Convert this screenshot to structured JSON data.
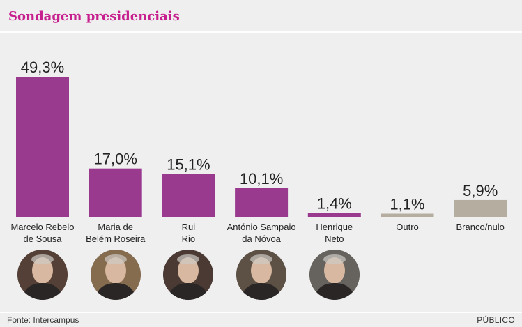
{
  "header": {
    "title": "Sondagem presidenciais"
  },
  "footer": {
    "source": "Fonte: Intercampus",
    "brand": "PÚBLICO"
  },
  "colors": {
    "primary": "#993a8f",
    "neutral": "#b5ad9f",
    "title": "#c71f8e"
  },
  "chart_data": {
    "type": "bar",
    "categories": [
      [
        "Marcelo Rebelo",
        "de Sousa"
      ],
      [
        "Maria de",
        "Belém Roseira"
      ],
      [
        "Rui",
        "Rio"
      ],
      [
        "António Sampaio",
        "da Nóvoa"
      ],
      [
        "Henrique",
        "Neto"
      ],
      [
        "Outro"
      ],
      [
        "Branco/nulo"
      ]
    ],
    "values": [
      49.3,
      17.0,
      15.1,
      10.1,
      1.4,
      1.1,
      5.9
    ],
    "value_labels": [
      "49,3%",
      "17,0%",
      "15,1%",
      "10,1%",
      "1,4%",
      "1,1%",
      "5,9%"
    ],
    "bar_colors": [
      "primary",
      "primary",
      "primary",
      "primary",
      "primary",
      "neutral",
      "neutral"
    ],
    "candidate_photos": [
      {
        "icon": "portrait-marcelo-rebelo-de-sousa",
        "tone": "#6a4a3c"
      },
      {
        "icon": "portrait-maria-de-belem-roseira",
        "tone": "#c49a6a"
      },
      {
        "icon": "portrait-rui-rio",
        "tone": "#5a4038"
      },
      {
        "icon": "portrait-antonio-sampaio-da-novoa",
        "tone": "#7a6a5a"
      },
      {
        "icon": "portrait-henrique-neto",
        "tone": "#8a8a86"
      }
    ],
    "ylim": [
      0,
      49.3
    ],
    "grid": false
  }
}
